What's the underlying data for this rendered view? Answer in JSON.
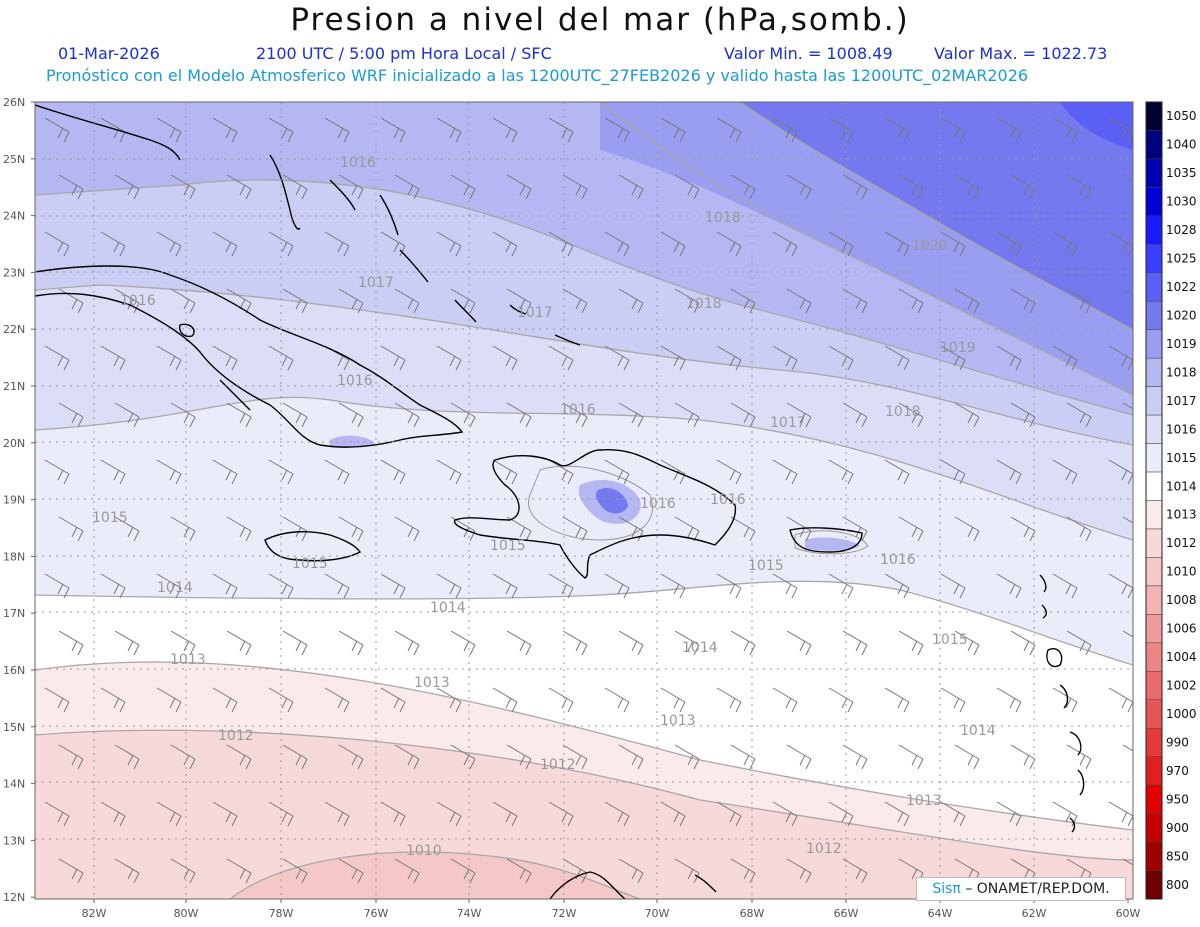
{
  "header": {
    "title": "Presion a nivel del mar (hPa,somb.)",
    "date": "01-Mar-2026",
    "time": "2100 UTC / 5:00 pm Hora Local / SFC",
    "value_min": "Valor Min. = 1008.49",
    "value_max": "Valor Max. = 1022.73",
    "model_info": "Pronóstico con el Modelo Atmosferico WRF inicializado a las 1200UTC_27FEB2026 y valido hasta las  1200UTC_02MAR2026"
  },
  "map": {
    "lat_ticks": [
      "26N",
      "25N",
      "24N",
      "23N",
      "22N",
      "21N",
      "20N",
      "19N",
      "18N",
      "17N",
      "16N",
      "15N",
      "14N",
      "13N",
      "12N"
    ],
    "lon_ticks": [
      "82W",
      "80W",
      "78W",
      "76W",
      "74W",
      "72W",
      "70W",
      "68W",
      "66W",
      "64W",
      "62W",
      "60W"
    ],
    "isobar_labels": [
      {
        "text": "1016"
      },
      {
        "text": "1016"
      },
      {
        "text": "1017"
      },
      {
        "text": "1017"
      },
      {
        "text": "1018"
      },
      {
        "text": "1018"
      },
      {
        "text": "1019"
      },
      {
        "text": "1020"
      },
      {
        "text": "1016"
      },
      {
        "text": "1016"
      },
      {
        "text": "1017"
      },
      {
        "text": "1018"
      },
      {
        "text": "1015"
      },
      {
        "text": "1016"
      },
      {
        "text": "1016"
      },
      {
        "text": "1015"
      },
      {
        "text": "1015"
      },
      {
        "text": "1015"
      },
      {
        "text": "1016"
      },
      {
        "text": "1014"
      },
      {
        "text": "1014"
      },
      {
        "text": "1015"
      },
      {
        "text": "1014"
      },
      {
        "text": "1014"
      },
      {
        "text": "1013"
      },
      {
        "text": "1013"
      },
      {
        "text": "1013"
      },
      {
        "text": "1013"
      },
      {
        "text": "1012"
      },
      {
        "text": "1012"
      },
      {
        "text": "1012"
      },
      {
        "text": "1010"
      }
    ],
    "colors": {
      "deep_blue": "#5a5ff5",
      "blue_1": "#7479f0",
      "blue_2": "#9a9ef0",
      "blue_3": "#b4b7f2",
      "blue_4": "#cacdf4",
      "blue_5": "#dcdef7",
      "blue_6": "#ebecfa",
      "white": "#ffffff",
      "pink_1": "#fbeaea",
      "pink_2": "#f8d9d9",
      "pink_3": "#f5c8c8"
    }
  },
  "legend": {
    "items": [
      {
        "label": "1050",
        "color": "#000033"
      },
      {
        "label": "1040",
        "color": "#000080"
      },
      {
        "label": "1035",
        "color": "#0000b0"
      },
      {
        "label": "1030",
        "color": "#0000d8"
      },
      {
        "label": "1028",
        "color": "#1a1aff"
      },
      {
        "label": "1025",
        "color": "#3a3fff"
      },
      {
        "label": "1022",
        "color": "#5a5ff5"
      },
      {
        "label": "1020",
        "color": "#7479f0"
      },
      {
        "label": "1019",
        "color": "#9a9ef0"
      },
      {
        "label": "1018",
        "color": "#b4b7f2"
      },
      {
        "label": "1017",
        "color": "#cacdf4"
      },
      {
        "label": "1016",
        "color": "#dcdef7"
      },
      {
        "label": "1015",
        "color": "#ebecfa"
      },
      {
        "label": "1014",
        "color": "#ffffff"
      },
      {
        "label": "1013",
        "color": "#fbeaea"
      },
      {
        "label": "1012",
        "color": "#f8d9d9"
      },
      {
        "label": "1010",
        "color": "#f5c8c8"
      },
      {
        "label": "1008",
        "color": "#f4b3b3"
      },
      {
        "label": "1006",
        "color": "#f19c9c"
      },
      {
        "label": "1004",
        "color": "#ee8585"
      },
      {
        "label": "1002",
        "color": "#ea6b6b"
      },
      {
        "label": "1000",
        "color": "#e85555"
      },
      {
        "label": "990",
        "color": "#e43a3a"
      },
      {
        "label": "970",
        "color": "#e21f1f"
      },
      {
        "label": "950",
        "color": "#e00000"
      },
      {
        "label": "900",
        "color": "#c40000"
      },
      {
        "label": "850",
        "color": "#a00000"
      },
      {
        "label": "800",
        "color": "#700000"
      }
    ]
  },
  "credit": {
    "sis": "Sisπ",
    "rest": "– ONAMET/REP.DOM."
  }
}
